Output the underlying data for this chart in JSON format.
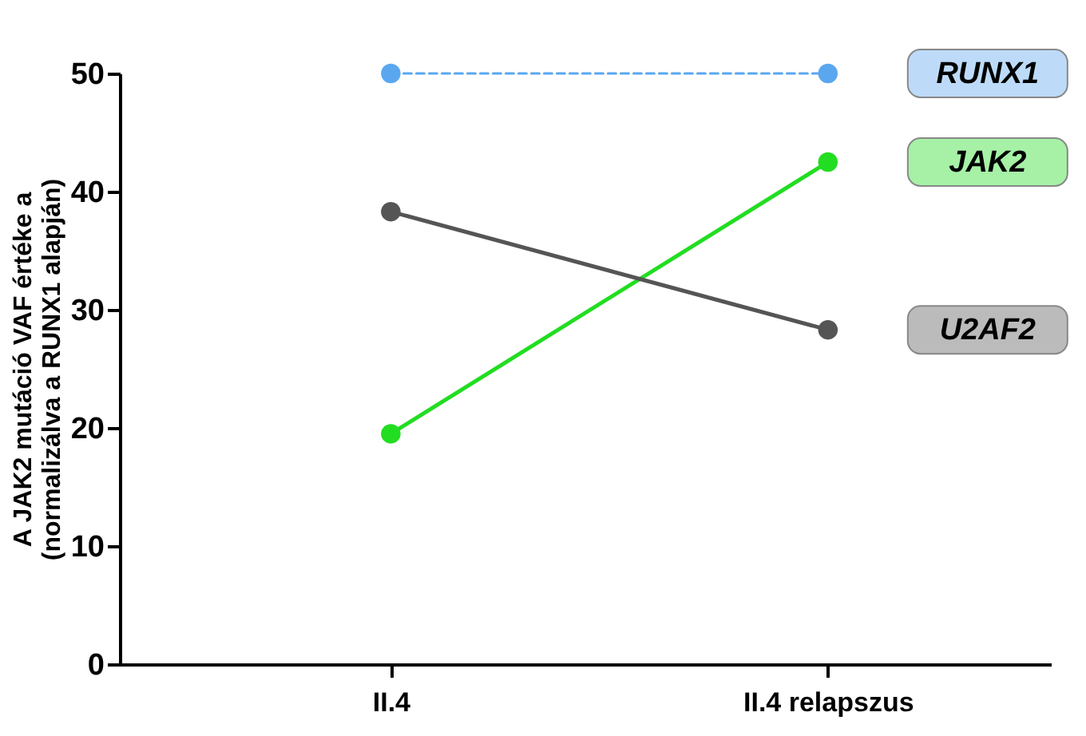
{
  "chart_data": {
    "type": "line",
    "ylabel": "A JAK2 mutáció VAF értéke a\n(normalizálva a RUNX1 alapján)",
    "categories": [
      "II.4",
      "II.4 relapszus"
    ],
    "ylim": [
      0,
      50
    ],
    "yticks": [
      0,
      10,
      20,
      30,
      40,
      50
    ],
    "grid": false,
    "marker": "circle",
    "series": [
      {
        "name": "RUNX1",
        "color": "#5aa7f0",
        "values": [
          50,
          50
        ],
        "line_style": "dashed"
      },
      {
        "name": "JAK2",
        "color": "#22dd22",
        "values": [
          19.5,
          42.5
        ],
        "line_style": "solid"
      },
      {
        "name": "U2AF2",
        "color": "#555555",
        "values": [
          38.3,
          28.3
        ],
        "line_style": "solid"
      }
    ]
  }
}
